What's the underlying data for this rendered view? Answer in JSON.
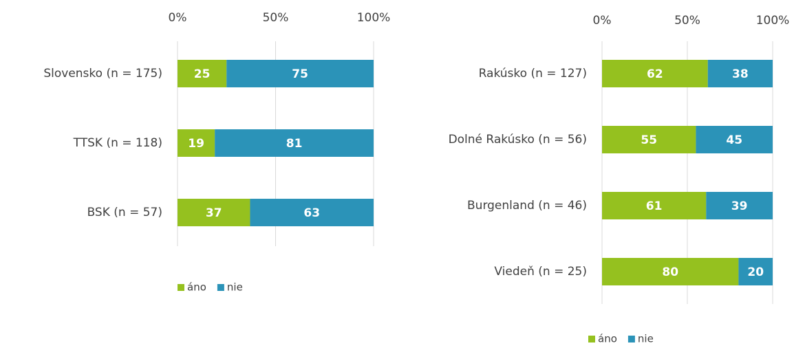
{
  "chart_data": [
    {
      "type": "stacked_bar_horizontal",
      "categories": [
        "Slovensko (n = 175)",
        "TTSK (n = 118)",
        "BSK (n = 57)"
      ],
      "series": [
        {
          "name": "áno",
          "color": "#95c11f",
          "values": [
            25,
            19,
            37
          ]
        },
        {
          "name": "nie",
          "color": "#2b93b8",
          "values": [
            75,
            81,
            63
          ]
        }
      ],
      "xlim": [
        0,
        100
      ],
      "xticks": [
        {
          "value": 0,
          "label": "0%"
        },
        {
          "value": 50,
          "label": "50%"
        },
        {
          "value": 100,
          "label": "100%"
        }
      ],
      "grid": true,
      "legend": "bottom"
    },
    {
      "type": "stacked_bar_horizontal",
      "categories": [
        "Rakúsko (n = 127)",
        "Dolné Rakúsko (n = 56)",
        "Burgenland (n = 46)",
        "Viedeň (n = 25)"
      ],
      "series": [
        {
          "name": "áno",
          "color": "#95c11f",
          "values": [
            62,
            55,
            61,
            80
          ]
        },
        {
          "name": "nie",
          "color": "#2b93b8",
          "values": [
            38,
            45,
            39,
            20
          ]
        }
      ],
      "xlim": [
        0,
        100
      ],
      "xticks": [
        {
          "value": 0,
          "label": "0%"
        },
        {
          "value": 50,
          "label": "50%"
        },
        {
          "value": 100,
          "label": "100%"
        }
      ],
      "grid": true,
      "legend": "bottom"
    }
  ]
}
